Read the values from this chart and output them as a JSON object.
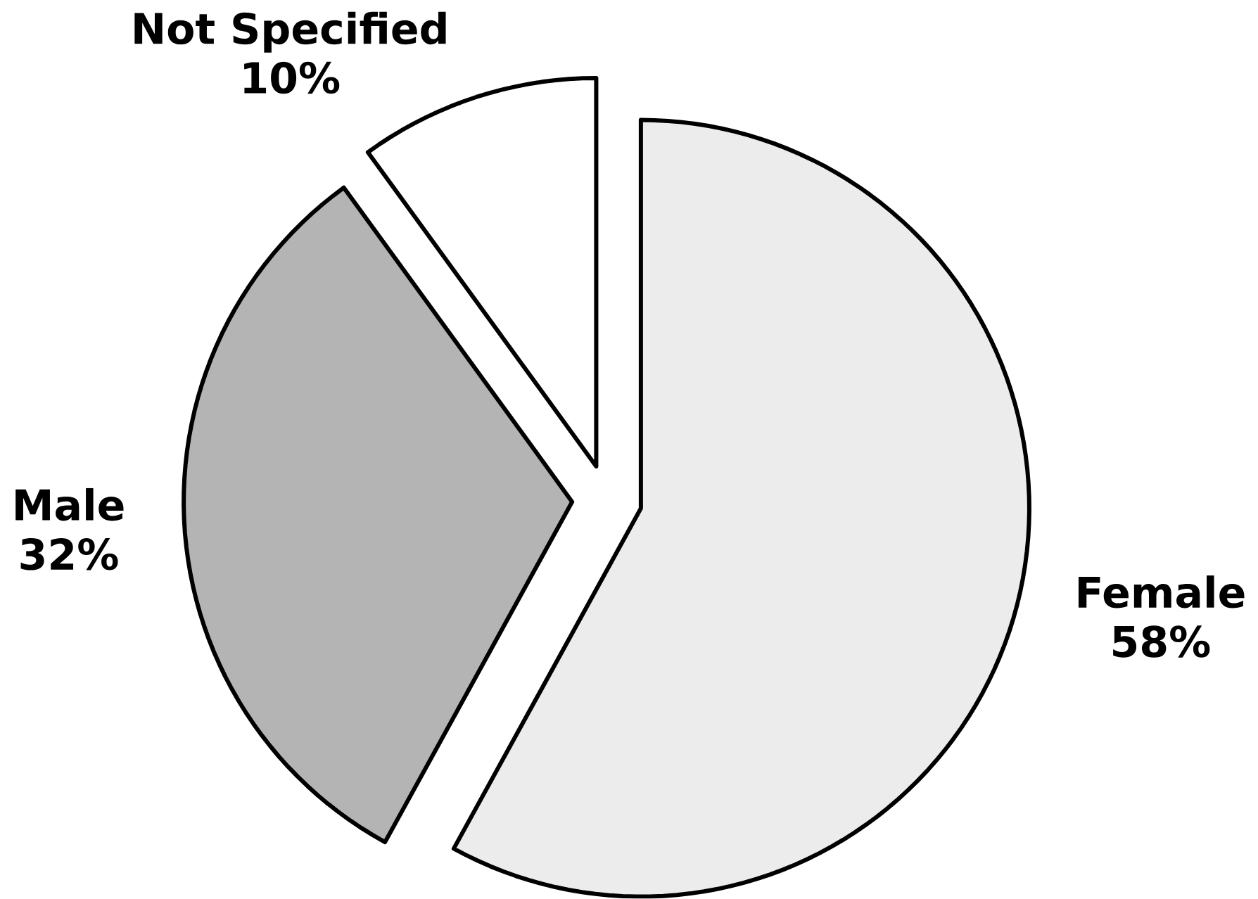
{
  "chart_data": {
    "type": "pie",
    "categories": [
      "Female",
      "Male",
      "Not Specified"
    ],
    "values": [
      58,
      32,
      10
    ],
    "value_labels": [
      "58%",
      "32%",
      "10%"
    ],
    "colors": [
      "#ececec",
      "#b4b4b4",
      "#ffffff"
    ]
  }
}
